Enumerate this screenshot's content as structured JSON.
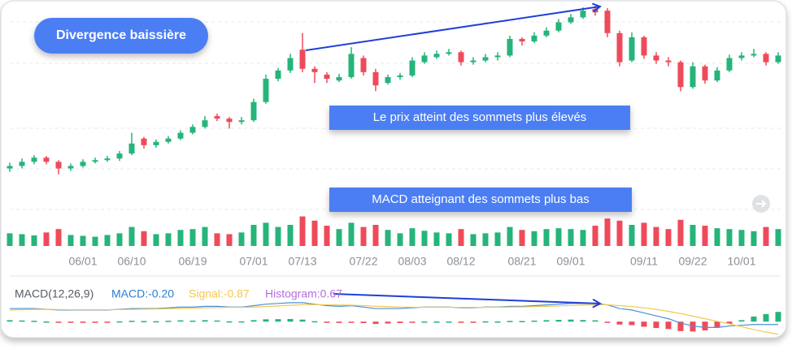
{
  "chart_data": {
    "type": "candlestick",
    "badge": "Divergence baissière",
    "annotations": [
      "Le prix atteint des sommets plus élevés",
      "MACD atteignant des sommets plus bas"
    ],
    "up_color": "#26b47a",
    "down_color": "#ef4a5a",
    "ylim": [
      70,
      290
    ],
    "categories": [
      null,
      null,
      null,
      null,
      null,
      null,
      "06/01",
      null,
      null,
      null,
      "06/10",
      null,
      null,
      null,
      null,
      "06/19",
      null,
      null,
      null,
      null,
      "07/01",
      null,
      null,
      null,
      "07/13",
      null,
      null,
      null,
      null,
      "07/22",
      null,
      null,
      null,
      "08/03",
      null,
      null,
      null,
      "08/12",
      null,
      null,
      null,
      null,
      "08/21",
      null,
      null,
      null,
      "09/01",
      null,
      null,
      null,
      null,
      null,
      "09/11",
      null,
      null,
      null,
      "09/22",
      null,
      null,
      null,
      "10/01",
      null,
      null,
      null
    ],
    "candles": [
      [
        92,
        99,
        88,
        95
      ],
      [
        95,
        104,
        92,
        100
      ],
      [
        100,
        108,
        97,
        105
      ],
      [
        105,
        107,
        97,
        100
      ],
      [
        100,
        102,
        85,
        92
      ],
      [
        92,
        98,
        89,
        95
      ],
      [
        95,
        103,
        93,
        100
      ],
      [
        100,
        105,
        98,
        102
      ],
      [
        102,
        107,
        100,
        104
      ],
      [
        104,
        113,
        101,
        110
      ],
      [
        110,
        135,
        108,
        122
      ],
      [
        128,
        130,
        116,
        120
      ],
      [
        120,
        127,
        117,
        124
      ],
      [
        124,
        131,
        122,
        128
      ],
      [
        128,
        138,
        126,
        135
      ],
      [
        135,
        145,
        133,
        142
      ],
      [
        142,
        155,
        140,
        150
      ],
      [
        155,
        158,
        149,
        152
      ],
      [
        152,
        154,
        140,
        148
      ],
      [
        148,
        154,
        145,
        150
      ],
      [
        150,
        176,
        148,
        172
      ],
      [
        172,
        205,
        170,
        200
      ],
      [
        200,
        213,
        197,
        210
      ],
      [
        210,
        230,
        207,
        225
      ],
      [
        235,
        255,
        208,
        212
      ],
      [
        212,
        215,
        195,
        208
      ],
      [
        205,
        208,
        195,
        200
      ],
      [
        198,
        206,
        196,
        202
      ],
      [
        202,
        238,
        200,
        230
      ],
      [
        225,
        228,
        204,
        208
      ],
      [
        208,
        212,
        185,
        192
      ],
      [
        195,
        205,
        193,
        202
      ],
      [
        202,
        207,
        199,
        204
      ],
      [
        204,
        226,
        202,
        222
      ],
      [
        220,
        232,
        218,
        228
      ],
      [
        226,
        234,
        224,
        230
      ],
      [
        230,
        236,
        228,
        232
      ],
      [
        232,
        234,
        216,
        220
      ],
      [
        220,
        226,
        217,
        222
      ],
      [
        222,
        230,
        220,
        226
      ],
      [
        226,
        232,
        222,
        228
      ],
      [
        228,
        252,
        226,
        248
      ],
      [
        248,
        250,
        240,
        245
      ],
      [
        245,
        256,
        243,
        252
      ],
      [
        252,
        262,
        250,
        258
      ],
      [
        258,
        272,
        256,
        268
      ],
      [
        268,
        278,
        266,
        274
      ],
      [
        274,
        286,
        272,
        282
      ],
      [
        284,
        288,
        276,
        280
      ],
      [
        282,
        285,
        250,
        255
      ],
      [
        255,
        258,
        215,
        220
      ],
      [
        222,
        256,
        220,
        250
      ],
      [
        250,
        252,
        224,
        228
      ],
      [
        228,
        232,
        218,
        222
      ],
      [
        222,
        226,
        215,
        220
      ],
      [
        220,
        222,
        185,
        190
      ],
      [
        190,
        220,
        188,
        215
      ],
      [
        215,
        217,
        194,
        198
      ],
      [
        198,
        214,
        196,
        210
      ],
      [
        210,
        229,
        208,
        225
      ],
      [
        225,
        232,
        222,
        228
      ],
      [
        228,
        236,
        226,
        230
      ],
      [
        230,
        232,
        216,
        220
      ],
      [
        220,
        232,
        218,
        228
      ]
    ],
    "volume": {
      "ylim": [
        0,
        100
      ],
      "values": [
        30,
        28,
        25,
        32,
        40,
        26,
        24,
        22,
        26,
        30,
        45,
        35,
        28,
        30,
        38,
        40,
        45,
        30,
        28,
        32,
        50,
        55,
        45,
        50,
        70,
        60,
        48,
        40,
        55,
        45,
        50,
        38,
        30,
        42,
        36,
        32,
        30,
        40,
        28,
        30,
        32,
        45,
        38,
        35,
        40,
        42,
        40,
        38,
        48,
        65,
        60,
        50,
        55,
        45,
        40,
        62,
        50,
        48,
        42,
        40,
        38,
        35,
        45,
        40
      ]
    },
    "macd": {
      "ylim": [
        -1.05,
        2.3
      ],
      "legend": [
        "MACD(12,26,9)",
        "MACD:-0.20",
        "Signal:-0.87",
        "Histogram:0.67"
      ],
      "series": [
        {
          "name": "MACD",
          "color": "#4a90d9",
          "values": [
            0.9,
            0.9,
            0.9,
            0.85,
            0.8,
            0.8,
            0.8,
            0.8,
            0.8,
            0.85,
            0.9,
            0.9,
            0.9,
            0.95,
            1.0,
            1.0,
            1.05,
            1.05,
            1.0,
            1.0,
            1.1,
            1.2,
            1.25,
            1.3,
            1.3,
            1.2,
            1.1,
            1.05,
            1.1,
            1.0,
            0.9,
            0.9,
            0.9,
            0.95,
            1.0,
            1.0,
            1.0,
            0.95,
            0.95,
            1.0,
            1.0,
            1.05,
            1.05,
            1.1,
            1.15,
            1.2,
            1.25,
            1.25,
            1.25,
            1.15,
            0.9,
            0.8,
            0.6,
            0.4,
            0.2,
            -0.1,
            -0.3,
            -0.4,
            -0.4,
            -0.3,
            -0.25,
            -0.2,
            -0.2,
            -0.2
          ]
        },
        {
          "name": "Signal",
          "color": "#f2c94c",
          "values": [
            0.8,
            0.82,
            0.84,
            0.84,
            0.83,
            0.82,
            0.82,
            0.82,
            0.82,
            0.83,
            0.84,
            0.86,
            0.87,
            0.89,
            0.91,
            0.93,
            0.95,
            0.97,
            0.98,
            0.98,
            1.0,
            1.04,
            1.08,
            1.12,
            1.16,
            1.17,
            1.16,
            1.14,
            1.13,
            1.1,
            1.06,
            1.03,
            1.0,
            0.99,
            0.99,
            0.99,
            0.99,
            0.98,
            0.98,
            0.98,
            0.99,
            1.0,
            1.01,
            1.03,
            1.05,
            1.08,
            1.11,
            1.14,
            1.16,
            1.16,
            1.1,
            1.04,
            0.95,
            0.84,
            0.71,
            0.55,
            0.38,
            0.2,
            0.02,
            -0.15,
            -0.35,
            -0.55,
            -0.72,
            -0.87
          ]
        }
      ],
      "histogram": [
        0.1,
        0.08,
        0.06,
        0.01,
        -0.03,
        -0.02,
        -0.02,
        -0.02,
        -0.02,
        0.02,
        0.06,
        0.04,
        0.03,
        0.06,
        0.09,
        0.07,
        0.1,
        0.08,
        0.02,
        0.02,
        0.1,
        0.16,
        0.17,
        0.18,
        0.14,
        0.03,
        -0.06,
        -0.09,
        -0.03,
        -0.1,
        -0.16,
        -0.13,
        -0.1,
        -0.04,
        0.01,
        0.01,
        0.01,
        -0.03,
        -0.03,
        0.02,
        0.01,
        0.05,
        0.04,
        0.07,
        0.1,
        0.12,
        0.14,
        0.11,
        0.09,
        -0.01,
        -0.2,
        -0.24,
        -0.35,
        -0.44,
        -0.51,
        -0.65,
        -0.68,
        -0.6,
        -0.42,
        -0.15,
        0.1,
        0.35,
        0.52,
        0.67
      ]
    }
  }
}
